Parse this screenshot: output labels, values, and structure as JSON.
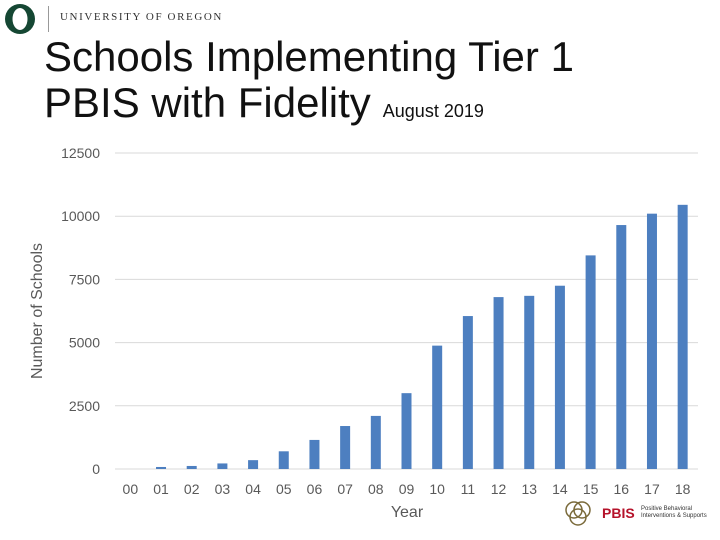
{
  "header": {
    "university": "UNIVERSITY OF OREGON",
    "title_line1": "Schools Implementing Tier 1",
    "title_line2": "PBIS with Fidelity",
    "date": "August 2019"
  },
  "footer": {
    "pbis": "PBIS",
    "line1": "Positive Behavioral",
    "line2": "Interventions & Supports"
  },
  "colors": {
    "bar": "#4d7fc0",
    "uo_green": "#154733",
    "uo_yellow": "#fee123",
    "pbis_red": "#b5122a"
  },
  "chart_data": {
    "type": "bar",
    "categories": [
      "00",
      "01",
      "02",
      "03",
      "04",
      "05",
      "06",
      "07",
      "08",
      "09",
      "10",
      "11",
      "12",
      "13",
      "14",
      "15",
      "16",
      "17",
      "18"
    ],
    "values": [
      0,
      80,
      120,
      220,
      350,
      700,
      1150,
      1700,
      2100,
      3000,
      4880,
      6050,
      6800,
      6850,
      7250,
      8450,
      9650,
      10100,
      10450
    ],
    "xlabel": "Year",
    "ylabel": "Number of Schools",
    "ylim": [
      0,
      12500
    ],
    "yticks": [
      0,
      2500,
      5000,
      7500,
      10000,
      12500
    ],
    "grid": true
  }
}
